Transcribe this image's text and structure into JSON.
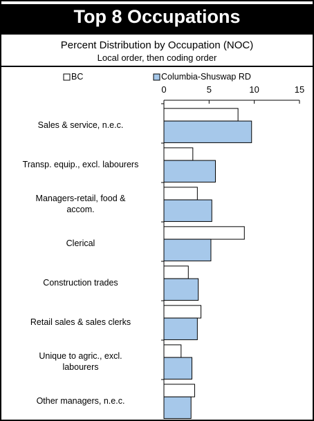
{
  "chart_data": {
    "type": "bar",
    "orientation": "horizontal",
    "title": "Top 8 Occupations",
    "subtitle": "Percent Distribution by Occupation (NOC)",
    "note": "Local order, then coding order",
    "categories": [
      "Sales & service, n.e.c.",
      "Transp. equip., excl. labourers",
      "Managers-retail, food &\naccom.",
      "Clerical",
      "Construction trades",
      "Retail sales & sales clerks",
      "Unique to agric., excl.\nlabourers",
      "Other managers, n.e.c."
    ],
    "series": [
      {
        "name": "BC",
        "color": "#ffffff",
        "values": [
          8.2,
          3.2,
          3.7,
          8.9,
          2.7,
          4.1,
          1.9,
          3.4
        ]
      },
      {
        "name": "Columbia-Shuswap RD",
        "color": "#a6c8ea",
        "values": [
          9.7,
          5.7,
          5.3,
          5.2,
          3.8,
          3.7,
          3.1,
          3.0
        ]
      }
    ],
    "xlim": [
      0,
      15
    ],
    "xticks": [
      0,
      5,
      10,
      15
    ],
    "legend": "top"
  }
}
